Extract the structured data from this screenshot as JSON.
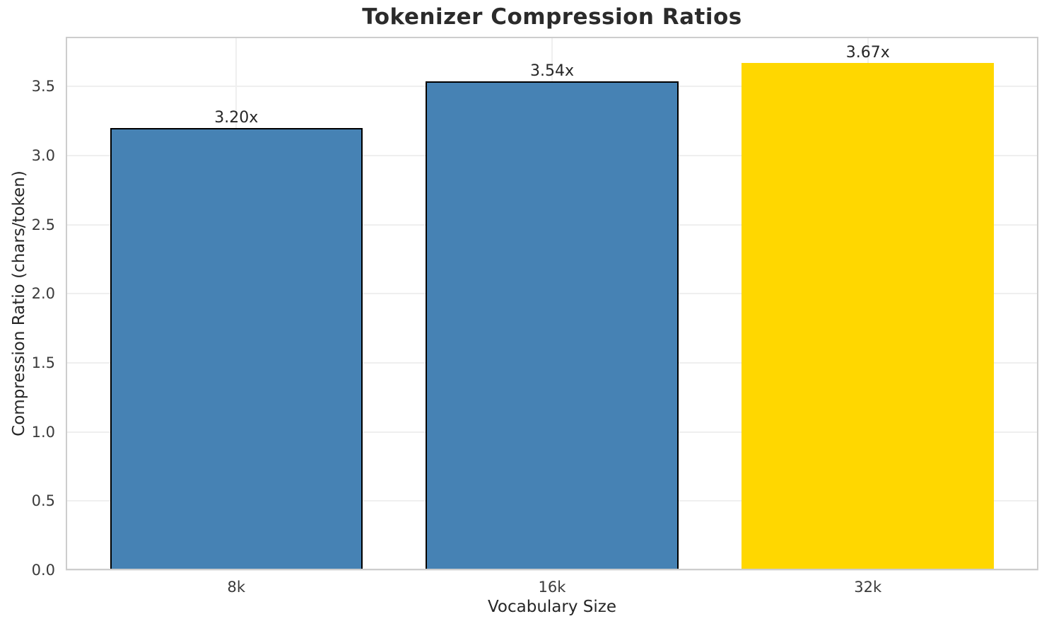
{
  "chart_data": {
    "type": "bar",
    "title": "Tokenizer Compression Ratios",
    "xlabel": "Vocabulary Size",
    "ylabel": "Compression Ratio (chars/token)",
    "categories": [
      "8k",
      "16k",
      "32k"
    ],
    "values": [
      3.2,
      3.54,
      3.67
    ],
    "bar_labels": [
      "3.20x",
      "3.54x",
      "3.67x"
    ],
    "bar_colors": [
      "#4682B4",
      "#4682B4",
      "#FFD700"
    ],
    "bar_edge_colors": [
      "#000000",
      "#000000",
      "none"
    ],
    "ylim": [
      0,
      3.86
    ],
    "yticks": [
      0,
      0.5,
      1,
      1.5,
      2,
      2.5,
      3,
      3.5
    ],
    "ytick_labels": [
      "0.0",
      "0.5",
      "1.0",
      "1.5",
      "2.0",
      "2.5",
      "3.0",
      "3.5"
    ],
    "grid": true,
    "legend_position": "none"
  },
  "colors": {
    "background": "#FFFFFF",
    "grid_line": "#EFEFEF",
    "spine": "#CDCDCD",
    "text": "#262626",
    "default_bar": "#4682B4",
    "highlight_bar": "#FFD700",
    "bar_edge": "#000000"
  }
}
